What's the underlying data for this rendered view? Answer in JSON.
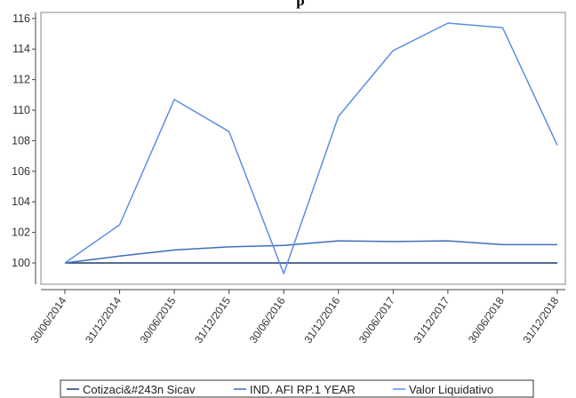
{
  "chart_data": {
    "type": "line",
    "title": "p",
    "xlabel": "",
    "ylabel": "",
    "categories": [
      "30/06/2014",
      "31/12/2014",
      "30/06/2015",
      "31/12/2015",
      "30/06/2016",
      "31/12/2016",
      "30/06/2017",
      "31/12/2017",
      "30/06/2018",
      "31/12/2018"
    ],
    "ylim": [
      99,
      116.3
    ],
    "yticks": [
      100,
      102,
      104,
      106,
      108,
      110,
      112,
      114,
      116
    ],
    "grid": false,
    "legend": "bottom",
    "series": [
      {
        "name": "Cotizaci&#243n Sicav",
        "color": "#1f3a6e",
        "values": [
          100,
          100,
          100,
          100,
          100,
          100,
          100,
          100,
          100,
          100
        ]
      },
      {
        "name": "IND. AFI RP.1 YEAR",
        "color": "#3e6fb8",
        "values": [
          100,
          100.45,
          100.85,
          101.05,
          101.15,
          101.45,
          101.4,
          101.45,
          101.2,
          101.2
        ]
      },
      {
        "name": "Valor Liquidativo",
        "color": "#5b8ee6",
        "values": [
          100,
          102.5,
          110.7,
          108.6,
          99.3,
          109.6,
          113.9,
          115.7,
          115.4,
          107.7
        ]
      }
    ]
  }
}
